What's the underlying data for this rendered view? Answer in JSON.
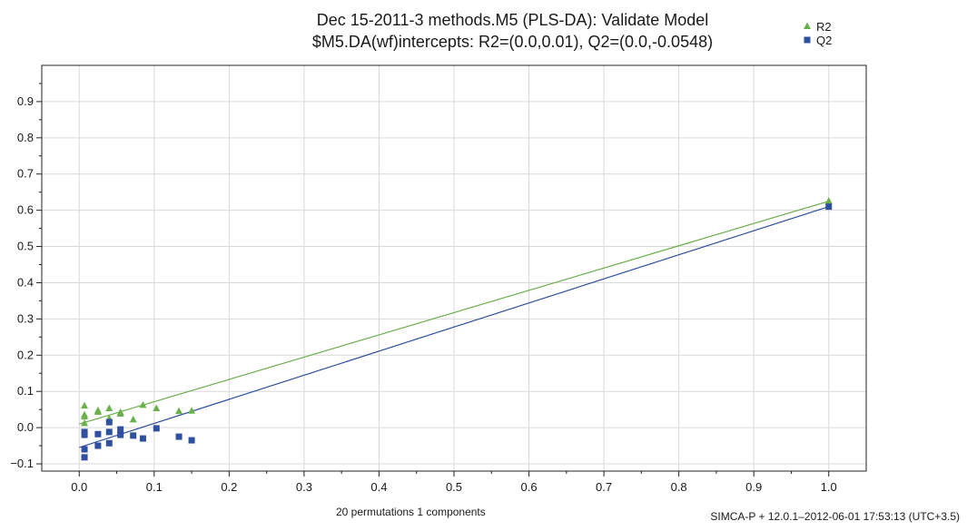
{
  "title": "Dec 15-2011-3 methods.M5 (PLS-DA): Validate Model",
  "subtitle": "$M5.DA(wf)intercepts: R2=(0.0,0.01), Q2=(0.0,-0.0548)",
  "footer": "SIMCA-P + 12.0.1–2012-06-01 17:53:13 (UTC+3.5)",
  "chart_data": {
    "type": "scatter",
    "title": "Dec 15-2011-3 methods.M5 (PLS-DA): Validate Model",
    "subtitle": "$M5.DA(wf)intercepts: R2=(0.0,0.01), Q2=(0.0,-0.0548)",
    "xlabel": "20 permutations 1 components",
    "ylabel": "",
    "xlim": [
      -0.05,
      1.05
    ],
    "ylim": [
      -0.12,
      1.0
    ],
    "xticks": [
      "0.0",
      "0.1",
      "0.2",
      "0.3",
      "0.4",
      "0.5",
      "0.6",
      "0.7",
      "0.8",
      "0.9",
      "1.0"
    ],
    "yticks": [
      "−0.1",
      "0.0",
      "0.1",
      "0.2",
      "0.3",
      "0.4",
      "0.5",
      "0.6",
      "0.7",
      "0.8",
      "0.9"
    ],
    "grid": true,
    "legend_position": "top-right",
    "series": [
      {
        "name": "R2",
        "marker": "triangle",
        "color": "#6ab04c",
        "points": [
          [
            0.007,
            0.06
          ],
          [
            0.007,
            0.035
          ],
          [
            0.007,
            0.03
          ],
          [
            0.007,
            0.012
          ],
          [
            0.025,
            0.047
          ],
          [
            0.025,
            0.043
          ],
          [
            0.04,
            0.053
          ],
          [
            0.04,
            0.025
          ],
          [
            0.055,
            0.042
          ],
          [
            0.055,
            0.038
          ],
          [
            0.072,
            0.022
          ],
          [
            0.085,
            0.062
          ],
          [
            0.103,
            0.053
          ],
          [
            0.133,
            0.045
          ],
          [
            0.15,
            0.046
          ],
          [
            1.0,
            0.625
          ]
        ],
        "intercept_line": [
          [
            0.0,
            0.01
          ],
          [
            1.0,
            0.625
          ]
        ]
      },
      {
        "name": "Q2",
        "marker": "square",
        "color": "#2f4fa0",
        "points": [
          [
            0.007,
            -0.012
          ],
          [
            0.007,
            -0.02
          ],
          [
            0.007,
            -0.06
          ],
          [
            0.007,
            -0.082
          ],
          [
            0.025,
            -0.018
          ],
          [
            0.025,
            -0.05
          ],
          [
            0.04,
            0.015
          ],
          [
            0.04,
            -0.012
          ],
          [
            0.04,
            -0.043
          ],
          [
            0.055,
            -0.005
          ],
          [
            0.055,
            -0.02
          ],
          [
            0.072,
            -0.022
          ],
          [
            0.085,
            -0.03
          ],
          [
            0.103,
            -0.002
          ],
          [
            0.133,
            -0.025
          ],
          [
            0.15,
            -0.035
          ],
          [
            1.0,
            0.61
          ]
        ],
        "intercept_line": [
          [
            0.0,
            -0.0548
          ],
          [
            1.0,
            0.61
          ]
        ]
      }
    ]
  },
  "colors": {
    "r2": "#6ab04c",
    "q2": "#2f4fa0",
    "grid": "#d9d9d9"
  }
}
